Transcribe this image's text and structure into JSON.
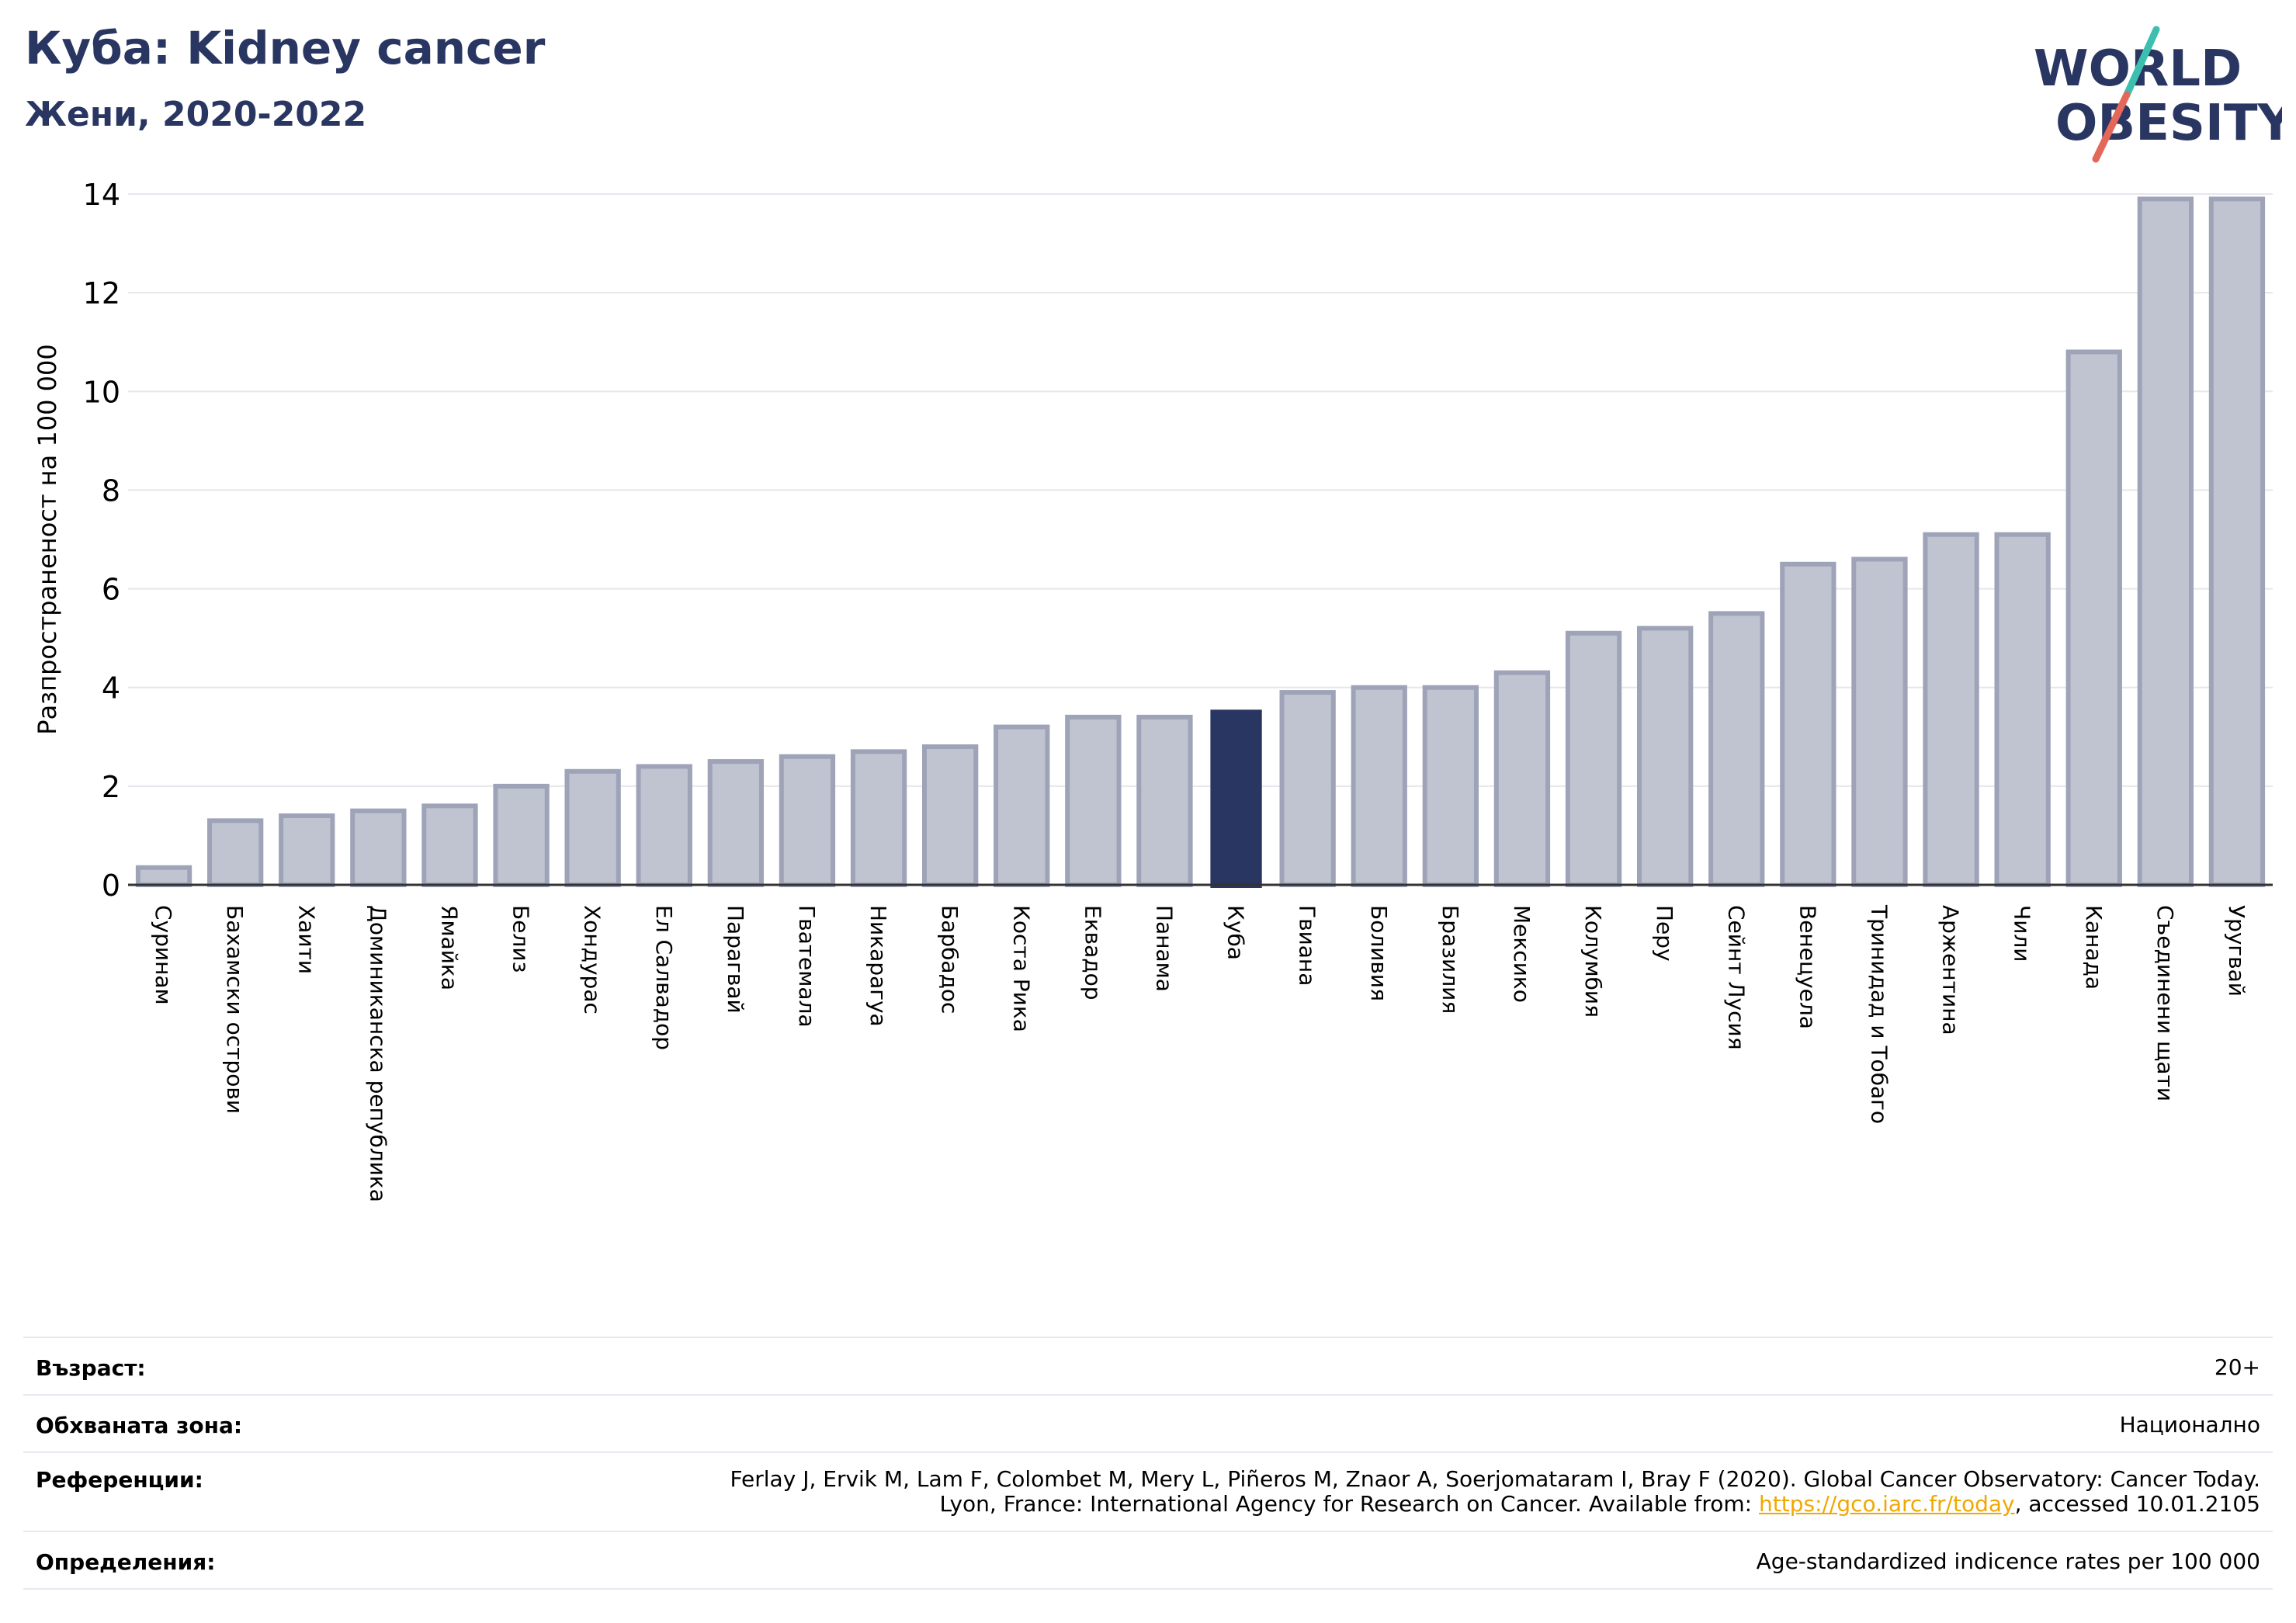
{
  "header": {
    "title": "Куба: Kidney cancer",
    "subtitle": "Жени, 2020-2022"
  },
  "logo": {
    "line1": "WORLD",
    "line2": "OBESITY",
    "text_color": "#2a3662",
    "slash_colors": [
      "#3dbfb0",
      "#e4685a"
    ]
  },
  "chart_data": {
    "type": "bar",
    "title": "Куба: Kidney cancer",
    "subtitle": "Жени, 2020-2022",
    "ylabel": "Разпространеност  на 100 000",
    "ylim": [
      0,
      14
    ],
    "yticks": [
      0,
      2,
      4,
      6,
      8,
      10,
      12,
      14
    ],
    "grid": true,
    "highlight": "Куба",
    "bar_color": "#c0c3d0",
    "bar_edge_color": "#9ea3b8",
    "highlight_color": "#2a3662",
    "categories": [
      "Суринам",
      "Бахамски острови",
      "Хаити",
      "Доминиканска република",
      "Ямайка",
      "Белиз",
      "Хондурас",
      "Ел Салвадор",
      "Парагвай",
      "Гватемала",
      "Никарагуа",
      "Барбадос",
      "Коста Рика",
      "Еквадор",
      "Панама",
      "Куба",
      "Гвиана",
      "Боливия",
      "Бразилия",
      "Мексико",
      "Колумбия",
      "Перу",
      "Сейнт Лусия",
      "Венецуела",
      "Тринидад и Тобаго",
      "Аржентина",
      "Чили",
      "Канада",
      "Съединени щати",
      "Уругвай"
    ],
    "values": [
      0.35,
      1.3,
      1.4,
      1.5,
      1.6,
      2.0,
      2.3,
      2.4,
      2.5,
      2.6,
      2.7,
      2.8,
      3.2,
      3.4,
      3.4,
      3.55,
      3.9,
      4.0,
      4.0,
      4.3,
      5.1,
      5.2,
      5.5,
      6.5,
      6.6,
      7.1,
      7.1,
      10.8,
      13.9,
      13.9
    ]
  },
  "info": {
    "age_label": "Възраст:",
    "age_value": "20+",
    "coverage_label": "Обхваната зона:",
    "coverage_value": "Национално",
    "references_label": "Референции:",
    "references_line1": "Ferlay J, Ervik M, Lam F, Colombet M, Mery L, Piñeros M, Znaor A, Soerjomataram I, Bray F (2020). Global Cancer Observatory: Cancer Today.",
    "references_line2_pre": "Lyon, France: International Agency for Research on Cancer. Available from: ",
    "references_link": "https://gco.iarc.fr/today",
    "references_line2_post": ", accessed 10.01.2105",
    "definitions_label": "Определения:",
    "definitions_value": "Age-standardized indicence rates per 100 000"
  }
}
